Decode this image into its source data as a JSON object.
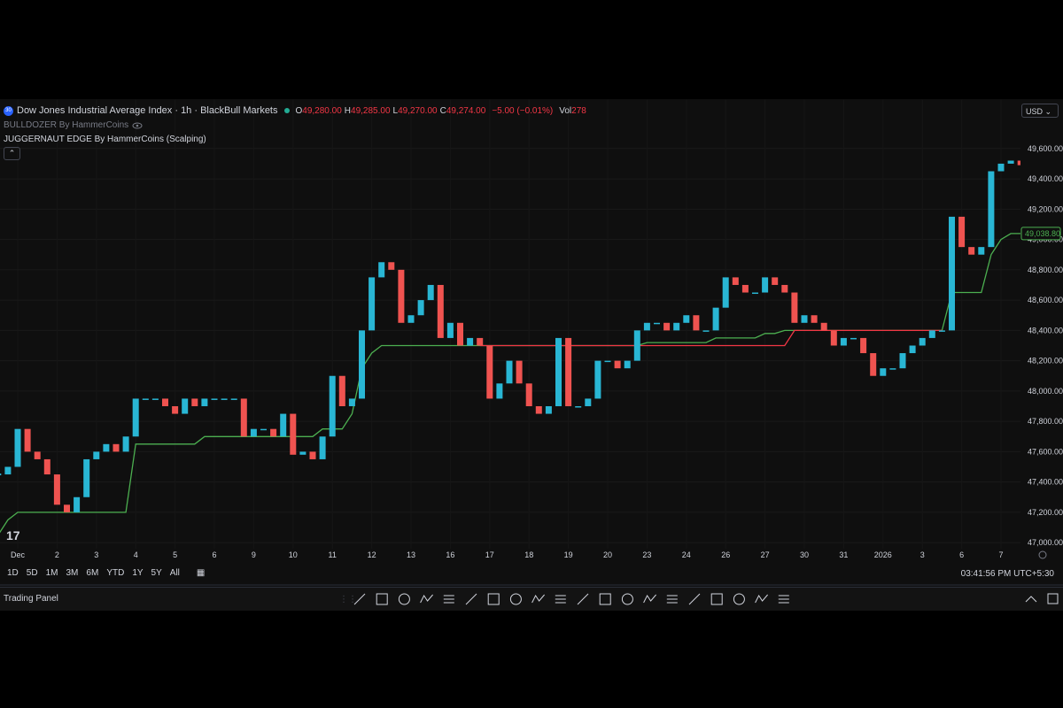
{
  "header": {
    "badge": "30",
    "title": "Dow Jones Industrial Average Index · 1h · BlackBull Markets",
    "ohlc": [
      {
        "key": "O",
        "value": "49,280.00"
      },
      {
        "key": "H",
        "value": "49,285.00"
      },
      {
        "key": "L",
        "value": "49,270.00"
      },
      {
        "key": "C",
        "value": "49,274.00"
      }
    ],
    "change": "−5.00 (−0.01%)",
    "volume_label": "Vol",
    "volume": "278",
    "indicators": [
      "BULLDOZER By HammerCoins",
      "JUGGERNAUT EDGE By HammerCoins (Scalping)"
    ],
    "currency": "USD"
  },
  "chart_data": {
    "type": "candlestick",
    "categories": [
      null,
      null,
      "Dec",
      null,
      null,
      null,
      "2",
      null,
      null,
      null,
      "3",
      null,
      null,
      null,
      "4",
      null,
      null,
      null,
      "5",
      null,
      null,
      null,
      "6",
      null,
      null,
      null,
      "9",
      null,
      null,
      null,
      "10",
      null,
      null,
      null,
      "11",
      null,
      null,
      null,
      "12",
      null,
      null,
      null,
      "13",
      null,
      null,
      null,
      "16",
      null,
      null,
      null,
      "17",
      null,
      null,
      null,
      "18",
      null,
      null,
      null,
      "19",
      null,
      null,
      null,
      "20",
      null,
      null,
      null,
      "23",
      null,
      null,
      null,
      "24",
      null,
      null,
      null,
      "26",
      null,
      null,
      null,
      "27",
      null,
      null,
      null,
      "30",
      null,
      null,
      null,
      "31",
      null,
      null,
      null,
      "2026",
      null,
      null,
      null,
      "3",
      null,
      null,
      null,
      "6",
      null,
      null,
      null,
      "7",
      null,
      null
    ],
    "close": [
      47450,
      47500,
      47750,
      47600,
      47550,
      47450,
      47250,
      47200,
      47300,
      47550,
      47600,
      47650,
      47600,
      47700,
      47950,
      47950,
      47950,
      47900,
      47850,
      47950,
      47900,
      47950,
      47950,
      47950,
      47950,
      47700,
      47750,
      47750,
      47700,
      47850,
      47580,
      47600,
      47550,
      47700,
      48100,
      47900,
      47950,
      48400,
      48750,
      48850,
      48800,
      48450,
      48500,
      48600,
      48700,
      48350,
      48450,
      48300,
      48350,
      48300,
      47950,
      48050,
      48200,
      48050,
      47900,
      47850,
      47900,
      48350,
      47900,
      47900,
      47950,
      48200,
      48200,
      48150,
      48200,
      48400,
      48450,
      48450,
      48400,
      48450,
      48500,
      48400,
      48400,
      48550,
      48750,
      48700,
      48650,
      48650,
      48750,
      48700,
      48650,
      48450,
      48500,
      48450,
      48400,
      48300,
      48350,
      48350,
      48250,
      48100,
      48150,
      48150,
      48250,
      48300,
      48350,
      48400,
      48400,
      49150,
      48950,
      48900,
      48950,
      49450,
      49500,
      49520,
      49490
    ],
    "up_color": "#29b6d4",
    "down_color": "#ef5350",
    "lines": [
      {
        "color": "#4caf50",
        "values": [
          47050,
          47150,
          47200,
          47200,
          47200,
          47200,
          47200,
          47200,
          47200,
          47200,
          47200,
          47200,
          47200,
          47200,
          47650,
          47650,
          47650,
          47650,
          47650,
          47650,
          47650,
          47700,
          47700,
          47700,
          47700,
          47700,
          47700,
          47700,
          47700,
          47700,
          47700,
          47700,
          47700,
          47750,
          47750,
          47750,
          47850,
          48150,
          48250,
          48300,
          48300,
          48300,
          48300,
          48300,
          48300,
          48300,
          48300,
          48300,
          48300,
          48300,
          48300,
          48300,
          48300,
          48300,
          48300,
          48300,
          48300,
          48300,
          48300,
          48300,
          48300,
          48300,
          48300,
          48300,
          48300,
          48300,
          48320,
          48320,
          48320,
          48320,
          48320,
          48320,
          48320,
          48350,
          48350,
          48350,
          48350,
          48350,
          48380,
          48380,
          48400,
          48400,
          48400,
          48400,
          48400,
          48400,
          48400,
          48400,
          48400,
          48400,
          48400,
          48400,
          48400,
          48400,
          48400,
          48400,
          48400,
          48650,
          48650,
          48650,
          48650,
          48900,
          49000,
          49038.8,
          49038.8
        ]
      },
      {
        "color": "#f23645",
        "values": [
          null,
          null,
          null,
          null,
          null,
          null,
          null,
          null,
          null,
          null,
          null,
          null,
          null,
          null,
          null,
          null,
          null,
          null,
          null,
          null,
          null,
          null,
          null,
          null,
          null,
          null,
          null,
          null,
          null,
          null,
          null,
          null,
          null,
          null,
          null,
          null,
          null,
          null,
          null,
          null,
          null,
          null,
          null,
          null,
          null,
          null,
          null,
          null,
          null,
          48300,
          48300,
          48300,
          48300,
          48300,
          48300,
          48300,
          48300,
          48300,
          48300,
          48300,
          48300,
          48300,
          48300,
          48300,
          48300,
          48300,
          48300,
          48300,
          48300,
          48300,
          48300,
          48300,
          48300,
          48300,
          48300,
          48300,
          48300,
          48300,
          48300,
          48300,
          48300,
          48400,
          48400,
          48400,
          48400,
          48400,
          48400,
          48400,
          48400,
          48400,
          48400,
          48400,
          48400,
          48400,
          48400,
          48400,
          48400,
          null,
          null,
          null,
          null,
          null,
          null,
          null,
          null
        ]
      }
    ],
    "last_value": {
      "value": 49038.8,
      "label": "49,038.80",
      "color": "#4caf50"
    },
    "ylim": [
      46960,
      49920
    ],
    "yticks": [
      {
        "value": 47000,
        "label": "47,000.00"
      },
      {
        "value": 47200,
        "label": "47,200.00"
      },
      {
        "value": 47400,
        "label": "47,400.00"
      },
      {
        "value": 47600,
        "label": "47,600.00"
      },
      {
        "value": 47800,
        "label": "47,800.00"
      },
      {
        "value": 48000,
        "label": "48,000.00"
      },
      {
        "value": 48200,
        "label": "48,200.00"
      },
      {
        "value": 48400,
        "label": "48,400.00"
      },
      {
        "value": 48600,
        "label": "48,600.00"
      },
      {
        "value": 48800,
        "label": "48,800.00"
      },
      {
        "value": 49000,
        "label": "49,000.00"
      },
      {
        "value": 49200,
        "label": "49,200.00"
      },
      {
        "value": 49400,
        "label": "49,400.00"
      },
      {
        "value": 49600,
        "label": "49,600.00"
      }
    ]
  },
  "toolbar": {
    "ranges": [
      "1D",
      "5D",
      "1M",
      "3M",
      "6M",
      "YTD",
      "1Y",
      "5Y",
      "All"
    ],
    "clock": "03:41:56 PM UTC+5:30",
    "panel": "Trading Panel"
  }
}
